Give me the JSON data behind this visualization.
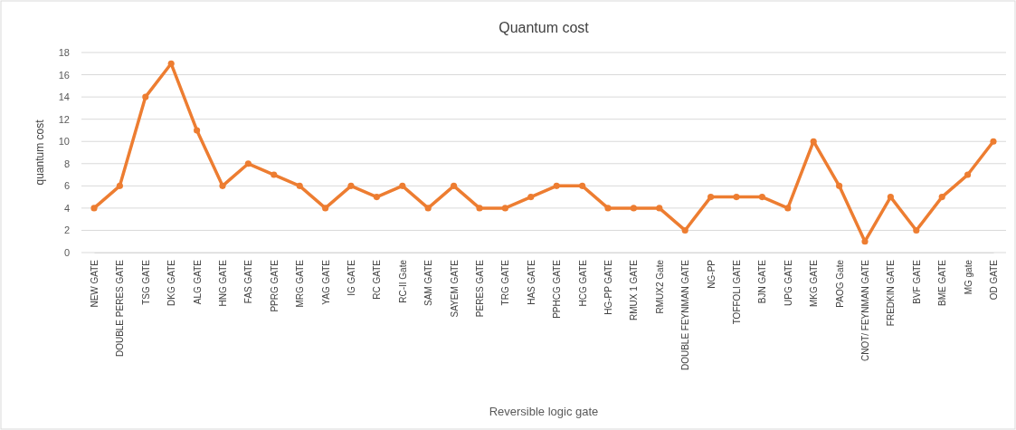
{
  "chart_data": {
    "type": "line",
    "title": "Quantum cost",
    "xlabel": "Reversible logic gate",
    "ylabel": "quantum cost",
    "categories": [
      "NEW GATE",
      "DOUBLE PERES GATE",
      "TSG GATE",
      "DKG GATE",
      "ALG GATE",
      "HNG GATE",
      "FAS GATE",
      "PPRG GATE",
      "MRG GATE",
      "YAG GATE",
      "IG GATE",
      "RC GATE",
      "RC-II Gate",
      "SAM GATE",
      "SAYEM GATE",
      "PERES GATE",
      "TRG GATE",
      "HAS GATE",
      "PPHCG GATE",
      "HCG GATE",
      "HG-PP GATE",
      "RMUX 1 GATE",
      "RMUX2 Gate",
      "DOUBLE FEYNMAN GATE",
      "NG-PP",
      "TOFFOLI GATE",
      "BJN GATE",
      "UPG GATE",
      "MKG GATE",
      "PAOG Gate",
      "CNOT/ FEYNMAN GATE",
      "FREDKIN GATE",
      "BVF GATE",
      "BME GATE",
      "MG gate",
      "OD GATE"
    ],
    "series": [
      {
        "color": "#ed7d31",
        "values": [
          4,
          6,
          14,
          17,
          11,
          6,
          8,
          7,
          6,
          4,
          6,
          5,
          6,
          4,
          6,
          4,
          4,
          5,
          6,
          6,
          4,
          4,
          4,
          2,
          5,
          5,
          5,
          4,
          10,
          6,
          1,
          5,
          2,
          5,
          7,
          10
        ]
      }
    ],
    "ylim": [
      0,
      18
    ],
    "yticks": [
      0,
      2,
      4,
      6,
      8,
      10,
      12,
      14,
      16,
      18
    ],
    "grid": "y",
    "marker": "circle",
    "line_style": "solid"
  }
}
